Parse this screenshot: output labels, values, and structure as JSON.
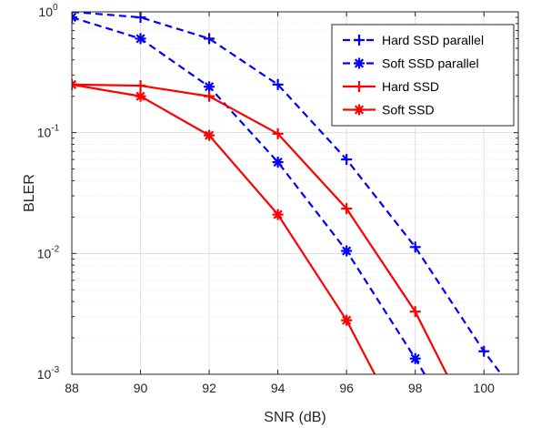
{
  "chart_data": {
    "type": "line",
    "xlabel": "SNR (dB)",
    "ylabel": "BLER",
    "xlim": [
      88,
      101
    ],
    "ylim": [
      0.001,
      1
    ],
    "yscale": "log",
    "grid": true,
    "legend_position": "top-right",
    "x_ticks": [
      88,
      90,
      92,
      94,
      96,
      98,
      100
    ],
    "y_ticks": [
      {
        "base": "10",
        "exp": "0"
      },
      {
        "base": "10",
        "exp": "-1"
      },
      {
        "base": "10",
        "exp": "-2"
      },
      {
        "base": "10",
        "exp": "-3"
      }
    ],
    "series": [
      {
        "name": "Hard SSD parallel",
        "color": "#0000ff",
        "dash": "dashed",
        "marker": "plus",
        "x": [
          88,
          90,
          92,
          94,
          96,
          98,
          100,
          101
        ],
        "y": [
          1.0,
          0.9,
          0.6,
          0.25,
          0.06,
          0.0113,
          0.00155,
          0.00065
        ]
      },
      {
        "name": "Soft SSD parallel",
        "color": "#0000ff",
        "dash": "dashed",
        "marker": "asterisk",
        "x": [
          88,
          90,
          92,
          94,
          96,
          98,
          99
        ],
        "y": [
          0.9,
          0.6,
          0.24,
          0.057,
          0.0105,
          0.00135,
          0.00045
        ]
      },
      {
        "name": "Hard SSD",
        "color": "#ff0000",
        "dash": "solid",
        "marker": "plus",
        "x": [
          88,
          90,
          92,
          94,
          96,
          98,
          99
        ],
        "y": [
          0.25,
          0.245,
          0.2,
          0.098,
          0.0235,
          0.0033,
          0.0009
        ]
      },
      {
        "name": "Soft SSD",
        "color": "#ff0000",
        "dash": "solid",
        "marker": "asterisk",
        "x": [
          88,
          90,
          92,
          94,
          96,
          97
        ],
        "y": [
          0.25,
          0.2,
          0.095,
          0.021,
          0.0028,
          0.0008
        ]
      }
    ]
  }
}
